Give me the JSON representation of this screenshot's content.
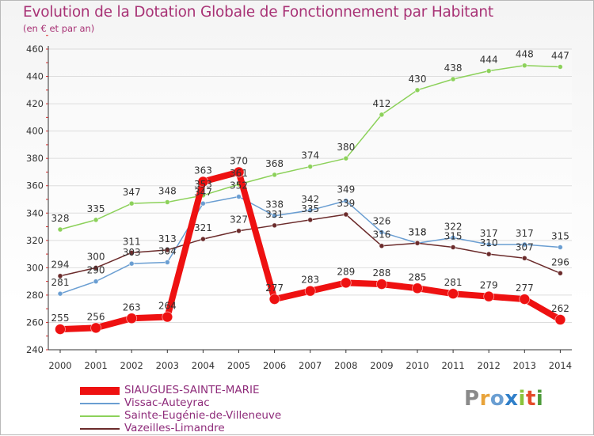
{
  "title": "Evolution de la Dotation Globale de Fonctionnement par Habitant",
  "subtitle": "(en € et par an)",
  "logo": {
    "text": "Proxiti",
    "colors": [
      "#8a8a8a",
      "#e8a33a",
      "#6a9ed2",
      "#2f7fc9",
      "#8ac33b",
      "#e44a2a",
      "#4d9a3a"
    ]
  },
  "chart_data": {
    "type": "line",
    "title": "Evolution de la Dotation Globale de Fonctionnement par Habitant",
    "ylabel": "(en € et par an)",
    "xlabel": "",
    "x": [
      "2000",
      "2001",
      "2002",
      "2003",
      "2004",
      "2005",
      "2006",
      "2007",
      "2008",
      "2009",
      "2010",
      "2011",
      "2012",
      "2013",
      "2014"
    ],
    "ylim": [
      240,
      460
    ],
    "yticks": [
      240,
      260,
      280,
      300,
      320,
      340,
      360,
      380,
      400,
      420,
      440,
      460
    ],
    "grid": "horizontal",
    "series": [
      {
        "name": "Vissac-Auteyrac",
        "color": "#6a9ed2",
        "values": [
          281,
          290,
          303,
          304,
          347,
          352,
          338,
          342,
          349,
          326,
          318,
          322,
          317,
          317,
          315
        ]
      },
      {
        "name": "Sainte-Eugénie-de-Villeneuve",
        "color": "#8cd15a",
        "values": [
          328,
          335,
          347,
          348,
          353,
          361,
          368,
          374,
          380,
          412,
          430,
          438,
          444,
          448,
          447
        ]
      },
      {
        "name": "Vazeilles-Limandre",
        "color": "#6b2b2b",
        "values": [
          294,
          300,
          311,
          313,
          321,
          327,
          331,
          335,
          339,
          316,
          318,
          315,
          310,
          307,
          296
        ]
      },
      {
        "name": "SIAUGUES-SAINTE-MARIE",
        "color": "#ee1111",
        "values": [
          255,
          256,
          263,
          264,
          363,
          370,
          277,
          283,
          289,
          288,
          285,
          281,
          279,
          277,
          262
        ]
      }
    ],
    "legend": [
      {
        "name": "SIAUGUES-SAINTE-MARIE",
        "color": "#ee1111"
      },
      {
        "name": "Vissac-Auteyrac",
        "color": "#6a9ed2"
      },
      {
        "name": "Sainte-Eugénie-de-Villeneuve",
        "color": "#8cd15a"
      },
      {
        "name": "Vazeilles-Limandre",
        "color": "#6b2b2b"
      }
    ],
    "legend_position": "bottom-left"
  }
}
